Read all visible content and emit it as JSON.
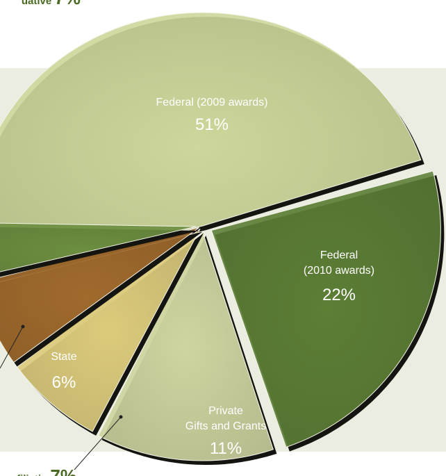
{
  "chart_data": {
    "type": "pie",
    "colors": {
      "federal_2009": "#cdd79b",
      "federal_2010": "#5c7e35",
      "private_gifts": "#cfd4a0",
      "affiliation": "#dccb7c",
      "state": "#a06a2c",
      "other": "#6c8e40",
      "background_band": "#ecede1",
      "leader_line": "#222222",
      "outside_text": "#4a6a22"
    },
    "slices": [
      {
        "key": "federal_2009",
        "label_lines": [
          "Federal (2009 awards)"
        ],
        "value": 51,
        "value_label": "51%"
      },
      {
        "key": "federal_2010",
        "label_lines": [
          "Federal",
          "(2010 awards)"
        ],
        "value": 22,
        "value_label": "22%"
      },
      {
        "key": "private_gifts",
        "label_lines": [
          "Private",
          "Gifts and Grants"
        ],
        "value": 11,
        "value_label": "11%"
      },
      {
        "key": "affiliation",
        "label_lines": [
          "filiatio"
        ],
        "value": 7,
        "value_label": "7%"
      },
      {
        "key": "state",
        "label_lines": [
          "State"
        ],
        "value": 6,
        "value_label": "6%"
      },
      {
        "key": "other",
        "label_lines": [
          "uative"
        ],
        "value": 7,
        "value_label": "7%"
      }
    ]
  }
}
